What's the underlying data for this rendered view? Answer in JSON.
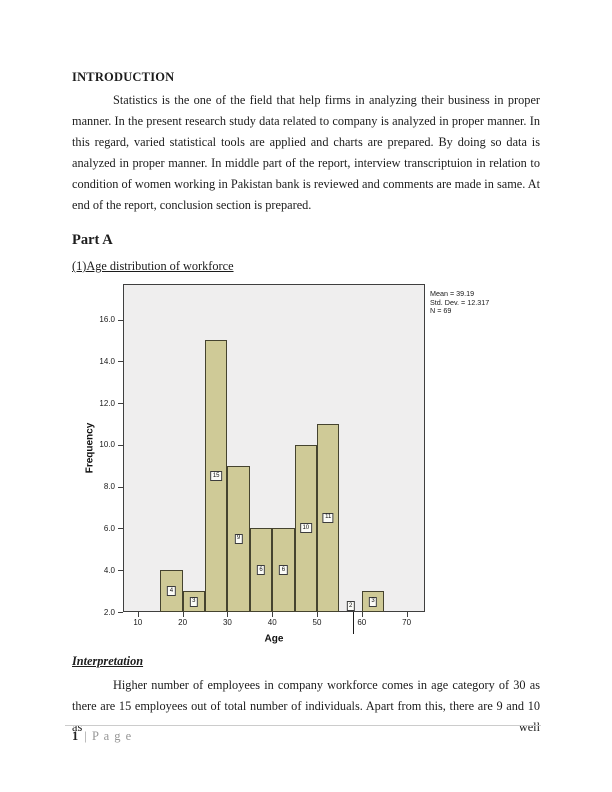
{
  "document": {
    "intro_heading": "INTRODUCTION",
    "intro_paragraph": "Statistics is the one of the field that help firms in analyzing their business in proper manner. In the present research study data related to company is analyzed in proper manner. In this regard, varied statistical tools are applied and charts are prepared. By doing so data is analyzed in proper manner. In middle part of the report, interview transcriptuion in relation to condition of women working in Pakistan bank is reviewed and comments are made in same. At end of the report, conclusion section is prepared.",
    "part_heading": "Part A",
    "chart_caption": "(1)Age distribution of workforce",
    "interpretation_heading": "Interpretation",
    "interpretation_paragraph": "Higher number of employees in company workforce comes in age category of 30 as there are 15 employees out of total number of individuals. Apart from this, there are 9 and 10 as well",
    "footer": {
      "page_number": "1",
      "page_label": "| P a g e"
    }
  },
  "chart_data": {
    "type": "bar",
    "subtype": "histogram",
    "title": "",
    "xlabel": "Age",
    "ylabel": "Frequency",
    "bins": [
      {
        "x0": 15,
        "x1": 20,
        "count": 4
      },
      {
        "x0": 20,
        "x1": 25,
        "count": 3
      },
      {
        "x0": 25,
        "x1": 30,
        "count": 15
      },
      {
        "x0": 30,
        "x1": 35,
        "count": 9
      },
      {
        "x0": 35,
        "x1": 40,
        "count": 6
      },
      {
        "x0": 40,
        "x1": 45,
        "count": 6
      },
      {
        "x0": 45,
        "x1": 50,
        "count": 10
      },
      {
        "x0": 50,
        "x1": 55,
        "count": 11
      },
      {
        "x0": 55,
        "x1": 60,
        "count": 2
      },
      {
        "x0": 60,
        "x1": 65,
        "count": 3
      }
    ],
    "xlim": [
      6.7,
      74.1
    ],
    "ylim": [
      2,
      17.7
    ],
    "x_ticks": [
      10,
      20,
      30,
      40,
      50,
      60,
      70
    ],
    "y_ticks": [
      2,
      4,
      6,
      8,
      10,
      12,
      14,
      16
    ],
    "y_tick_labels": [
      "2.0",
      "4.0",
      "6.0",
      "8.0",
      "10.0",
      "12.0",
      "14.0",
      "16.0"
    ],
    "stats_lines": [
      "Mean = 39.19",
      "Std. Dev. = 12.317",
      "N = 69"
    ],
    "stray_mark_x": 58,
    "grid": false,
    "legend": "none",
    "colors": {
      "bar_fill": "#cfca97",
      "bar_border": "#45432f",
      "plot_bg": "#efeeee",
      "plot_border": "#3f3f3f"
    }
  }
}
